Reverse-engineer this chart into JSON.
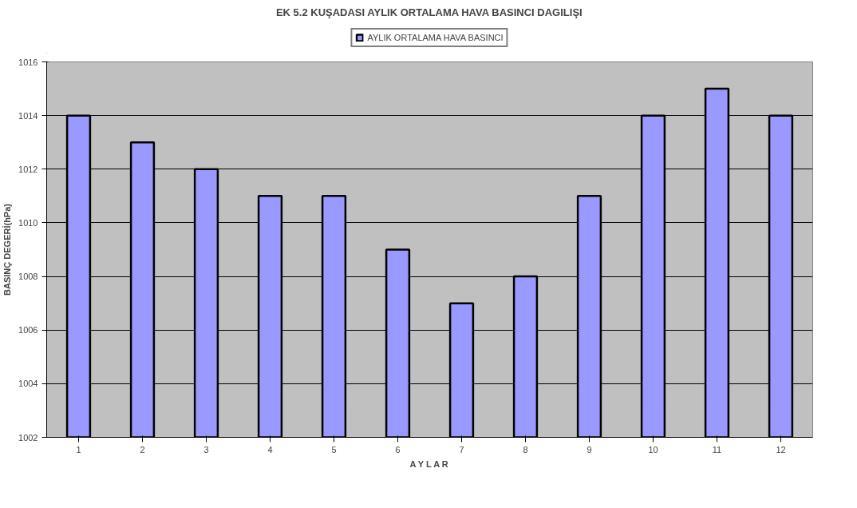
{
  "chart_data": {
    "type": "bar",
    "title": "EK 5.2 KUŞADASI AYLIK ORTALAMA HAVA BASINCI DAGILIŞI",
    "xlabel": "A Y L A R",
    "ylabel": "BASINÇ DEGERİ(hPa)",
    "categories": [
      "1",
      "2",
      "3",
      "4",
      "5",
      "6",
      "7",
      "8",
      "9",
      "10",
      "11",
      "12"
    ],
    "series": [
      {
        "name": "AYLIK ORTALAMA HAVA BASINCI",
        "color": "#9999ff",
        "values": [
          1014,
          1013,
          1012,
          1011,
          1011,
          1009,
          1007,
          1008,
          1011,
          1014,
          1015,
          1014
        ]
      }
    ],
    "ylim": [
      1002,
      1016
    ],
    "yticks": [
      1002,
      1004,
      1006,
      1008,
      1010,
      1012,
      1014,
      1016
    ],
    "grid": "y",
    "legend": "top"
  }
}
